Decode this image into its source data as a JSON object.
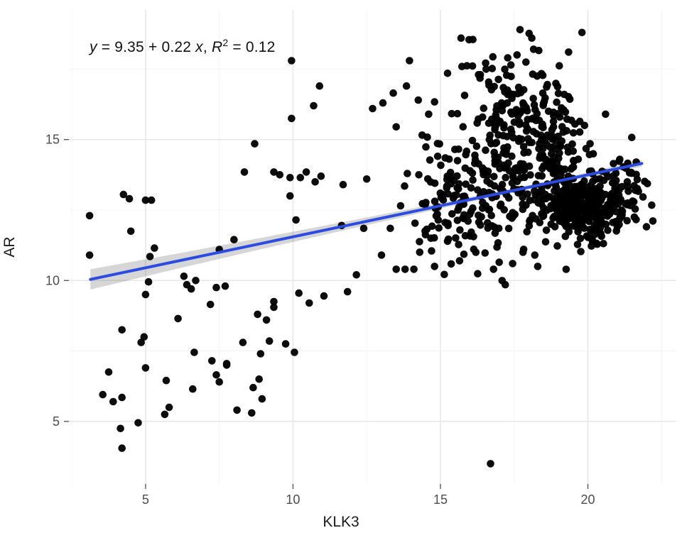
{
  "chart_data": {
    "type": "scatter",
    "xlabel": "KLK3",
    "ylabel": "AR",
    "annotation": {
      "y_var": "y",
      "body": " = 9.35 + 0.22 ",
      "x_var": "x",
      "comma": ", ",
      "r_var": "R",
      "exp": "2",
      "tail": " = 0.12"
    },
    "xlim": [
      2.4,
      23.0
    ],
    "ylim": [
      2.78,
      19.6
    ],
    "x_ticks": [
      5,
      10,
      15,
      20
    ],
    "x_minor_ticks": [
      2.5,
      7.5,
      12.5,
      17.5,
      22.5
    ],
    "y_ticks": [
      5,
      10,
      15
    ],
    "y_minor_ticks": [
      7.5,
      12.5,
      17.5
    ],
    "grid": true,
    "legend": "none",
    "colors": {
      "point": "#000000",
      "regression_line": "#2c4be0",
      "confidence_band": "#000000",
      "confidence_band_opacity": 0.16,
      "grid_major": "#e8e8e8",
      "grid_minor": "#f4f4f4",
      "tick_text": "#4d4d4d",
      "axis_title": "#1a1a1a",
      "tick_mark": "#4d4d4d"
    },
    "point_style": {
      "radius": 5.3,
      "opacity": 0.95
    },
    "regression": {
      "intercept": 9.35,
      "slope": 0.22,
      "r_squared": 0.12,
      "x_start": 3.13,
      "x_end": 21.83,
      "band_x": [
        3.13,
        6,
        9,
        12,
        15,
        17,
        19,
        21.83
      ],
      "band_half_width": [
        0.36,
        0.27,
        0.2,
        0.145,
        0.1,
        0.08,
        0.075,
        0.115
      ]
    },
    "points": [
      [
        3.1,
        12.3
      ],
      [
        3.1,
        10.9
      ],
      [
        4.25,
        13.05
      ],
      [
        4.45,
        12.9
      ],
      [
        5.0,
        12.85
      ],
      [
        5.2,
        12.85
      ],
      [
        4.5,
        11.75
      ],
      [
        5.3,
        11.15
      ],
      [
        5.15,
        10.85
      ],
      [
        5.1,
        9.95
      ],
      [
        5.0,
        9.5
      ],
      [
        4.2,
        8.25
      ],
      [
        4.95,
        8.0
      ],
      [
        4.85,
        7.8
      ],
      [
        3.75,
        6.75
      ],
      [
        5.0,
        6.9
      ],
      [
        3.55,
        5.95
      ],
      [
        3.9,
        5.7
      ],
      [
        4.2,
        5.85
      ],
      [
        4.75,
        4.95
      ],
      [
        4.15,
        4.75
      ],
      [
        4.2,
        4.05
      ],
      [
        6.3,
        10.15
      ],
      [
        6.4,
        9.85
      ],
      [
        6.55,
        9.7
      ],
      [
        6.7,
        10.0
      ],
      [
        7.4,
        9.75
      ],
      [
        7.7,
        9.8
      ],
      [
        7.2,
        9.15
      ],
      [
        6.1,
        8.65
      ],
      [
        6.65,
        7.45
      ],
      [
        7.25,
        7.15
      ],
      [
        7.75,
        7.05
      ],
      [
        7.4,
        6.65
      ],
      [
        7.5,
        6.4
      ],
      [
        5.7,
        6.45
      ],
      [
        6.6,
        6.15
      ],
      [
        5.8,
        5.5
      ],
      [
        5.65,
        5.25
      ],
      [
        7.5,
        11.1
      ],
      [
        8.0,
        11.45
      ],
      [
        8.3,
        7.8
      ],
      [
        9.2,
        7.85
      ],
      [
        9.75,
        7.75
      ],
      [
        8.9,
        7.4
      ],
      [
        10.05,
        7.45
      ],
      [
        7.75,
        7.0
      ],
      [
        8.85,
        6.5
      ],
      [
        8.65,
        6.2
      ],
      [
        8.95,
        5.8
      ],
      [
        8.1,
        5.4
      ],
      [
        8.6,
        5.3
      ],
      [
        9.35,
        9.25
      ],
      [
        9.35,
        9.05
      ],
      [
        8.8,
        8.8
      ],
      [
        9.1,
        8.6
      ],
      [
        10.2,
        9.55
      ],
      [
        10.55,
        9.2
      ],
      [
        11.05,
        9.45
      ],
      [
        11.85,
        9.6
      ],
      [
        12.15,
        10.2
      ],
      [
        10.1,
        12.15
      ],
      [
        9.9,
        13.0
      ],
      [
        11.65,
        11.95
      ],
      [
        12.4,
        11.85
      ],
      [
        13.3,
        11.85
      ],
      [
        13.65,
        12.65
      ],
      [
        13.0,
        10.9
      ],
      [
        13.5,
        10.4
      ],
      [
        13.8,
        10.4
      ],
      [
        14.1,
        10.4
      ],
      [
        8.35,
        13.85
      ],
      [
        9.35,
        13.85
      ],
      [
        9.55,
        13.75
      ],
      [
        9.9,
        13.65
      ],
      [
        10.25,
        13.65
      ],
      [
        10.45,
        13.85
      ],
      [
        10.75,
        13.5
      ],
      [
        10.95,
        13.7
      ],
      [
        11.7,
        13.4
      ],
      [
        12.5,
        13.6
      ],
      [
        8.7,
        14.85
      ],
      [
        9.95,
        15.75
      ],
      [
        10.7,
        16.2
      ],
      [
        10.9,
        16.9
      ],
      [
        9.95,
        17.8
      ],
      [
        12.7,
        16.1
      ],
      [
        13.05,
        16.3
      ],
      [
        13.4,
        16.65
      ],
      [
        13.85,
        16.9
      ],
      [
        13.5,
        15.45
      ],
      [
        13.95,
        17.8
      ],
      [
        14.7,
        11.05
      ],
      [
        14.8,
        10.5
      ],
      [
        15.65,
        10.7
      ],
      [
        16.2,
        11.0
      ],
      [
        16.8,
        10.4
      ],
      [
        17.2,
        9.85
      ],
      [
        17.45,
        10.6
      ],
      [
        17.8,
        11.0
      ],
      [
        18.2,
        10.9
      ],
      [
        18.3,
        10.5
      ],
      [
        16.7,
        3.5
      ],
      [
        20.6,
        15.9
      ],
      [
        19.8,
        18.8
      ],
      [
        17.7,
        18.9
      ],
      [
        18.1,
        18.6
      ],
      [
        15.7,
        18.6
      ],
      [
        16.1,
        18.55
      ],
      [
        14.25,
        16.4
      ],
      [
        14.6,
        15.9
      ]
    ],
    "point_clusters": [
      {
        "cx": 19.9,
        "cy": 12.6,
        "sdx": 0.72,
        "sdy": 0.55,
        "n": 340
      },
      {
        "cx": 17.9,
        "cy": 13.6,
        "sdx": 1.1,
        "sdy": 0.8,
        "n": 150
      },
      {
        "cx": 17.5,
        "cy": 16.2,
        "sdx": 1.0,
        "sdy": 1.05,
        "n": 120
      },
      {
        "cx": 15.7,
        "cy": 13.5,
        "sdx": 0.75,
        "sdy": 1.2,
        "n": 65
      },
      {
        "cx": 16.6,
        "cy": 12.0,
        "sdx": 1.1,
        "sdy": 0.75,
        "n": 55
      },
      {
        "cx": 21.2,
        "cy": 13.4,
        "sdx": 0.45,
        "sdy": 0.5,
        "n": 35
      },
      {
        "cx": 18.6,
        "cy": 15.0,
        "sdx": 0.9,
        "sdy": 0.7,
        "n": 60
      },
      {
        "cx": 14.9,
        "cy": 12.6,
        "sdx": 0.5,
        "sdy": 1.0,
        "n": 25
      }
    ],
    "clamp": {
      "x": [
        2.9,
        22.3
      ],
      "y": [
        3.2,
        19.25
      ]
    },
    "seed": 1337
  }
}
